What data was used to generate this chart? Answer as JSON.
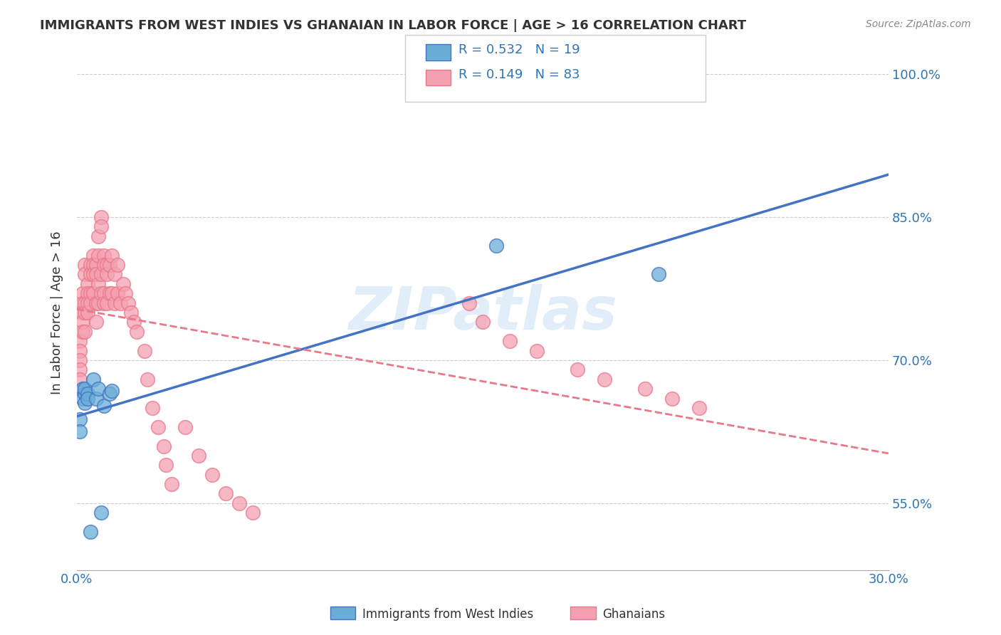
{
  "title": "IMMIGRANTS FROM WEST INDIES VS GHANAIAN IN LABOR FORCE | AGE > 16 CORRELATION CHART",
  "source": "Source: ZipAtlas.com",
  "xlabel_bottom": "",
  "ylabel": "In Labor Force | Age > 16",
  "x_ticks": [
    0.0,
    0.05,
    0.1,
    0.15,
    0.2,
    0.25,
    0.3
  ],
  "x_tick_labels": [
    "0.0%",
    "",
    "",
    "",
    "",
    "",
    "30.0%"
  ],
  "y_ticks": [
    0.5,
    0.55,
    0.6,
    0.65,
    0.7,
    0.75,
    0.8,
    0.85,
    0.9,
    0.95,
    1.0
  ],
  "y_tick_labels": [
    "",
    "55.0%",
    "",
    "",
    "70.0%",
    "",
    "",
    "85.0%",
    "",
    "",
    "100.0%"
  ],
  "xlim": [
    0.0,
    0.3
  ],
  "ylim": [
    0.48,
    1.02
  ],
  "legend_labels_bottom": [
    "Immigrants from West Indies",
    "Ghanaians"
  ],
  "legend_r_blue": "R = 0.532",
  "legend_n_blue": "N = 19",
  "legend_r_pink": "R = 0.149",
  "legend_n_pink": "N = 83",
  "color_blue": "#6aaed6",
  "color_pink": "#f4a0b0",
  "color_blue_line": "#4472c4",
  "color_pink_line": "#e8788a",
  "color_blue_dark": "#2e75b6",
  "watermark": "ZIPatlas",
  "blue_x": [
    0.001,
    0.001,
    0.002,
    0.002,
    0.003,
    0.003,
    0.003,
    0.004,
    0.004,
    0.005,
    0.006,
    0.007,
    0.008,
    0.009,
    0.01,
    0.012,
    0.013,
    0.155,
    0.215
  ],
  "blue_y": [
    0.638,
    0.625,
    0.67,
    0.66,
    0.665,
    0.67,
    0.655,
    0.665,
    0.66,
    0.52,
    0.68,
    0.66,
    0.67,
    0.54,
    0.652,
    0.665,
    0.668,
    0.82,
    0.79
  ],
  "pink_x": [
    0.001,
    0.001,
    0.001,
    0.001,
    0.001,
    0.002,
    0.002,
    0.002,
    0.002,
    0.002,
    0.003,
    0.003,
    0.003,
    0.003,
    0.003,
    0.004,
    0.004,
    0.004,
    0.004,
    0.005,
    0.005,
    0.005,
    0.005,
    0.006,
    0.006,
    0.006,
    0.006,
    0.007,
    0.007,
    0.007,
    0.007,
    0.008,
    0.008,
    0.008,
    0.008,
    0.009,
    0.009,
    0.009,
    0.009,
    0.01,
    0.01,
    0.01,
    0.01,
    0.011,
    0.011,
    0.011,
    0.012,
    0.012,
    0.013,
    0.013,
    0.014,
    0.014,
    0.015,
    0.015,
    0.016,
    0.017,
    0.018,
    0.019,
    0.02,
    0.021,
    0.022,
    0.025,
    0.026,
    0.028,
    0.03,
    0.032,
    0.033,
    0.035,
    0.04,
    0.045,
    0.05,
    0.055,
    0.06,
    0.065,
    0.145,
    0.15,
    0.16,
    0.17,
    0.185,
    0.195,
    0.21,
    0.22,
    0.23
  ],
  "pink_y": [
    0.72,
    0.71,
    0.7,
    0.69,
    0.68,
    0.77,
    0.76,
    0.75,
    0.74,
    0.73,
    0.8,
    0.79,
    0.76,
    0.75,
    0.73,
    0.78,
    0.77,
    0.76,
    0.75,
    0.8,
    0.79,
    0.77,
    0.76,
    0.81,
    0.8,
    0.79,
    0.77,
    0.8,
    0.79,
    0.76,
    0.74,
    0.83,
    0.81,
    0.78,
    0.76,
    0.85,
    0.84,
    0.79,
    0.77,
    0.81,
    0.8,
    0.77,
    0.76,
    0.8,
    0.79,
    0.76,
    0.8,
    0.77,
    0.81,
    0.77,
    0.79,
    0.76,
    0.8,
    0.77,
    0.76,
    0.78,
    0.77,
    0.76,
    0.75,
    0.74,
    0.73,
    0.71,
    0.68,
    0.65,
    0.63,
    0.61,
    0.59,
    0.57,
    0.63,
    0.6,
    0.58,
    0.56,
    0.55,
    0.54,
    0.76,
    0.74,
    0.72,
    0.71,
    0.69,
    0.68,
    0.67,
    0.66,
    0.65
  ]
}
